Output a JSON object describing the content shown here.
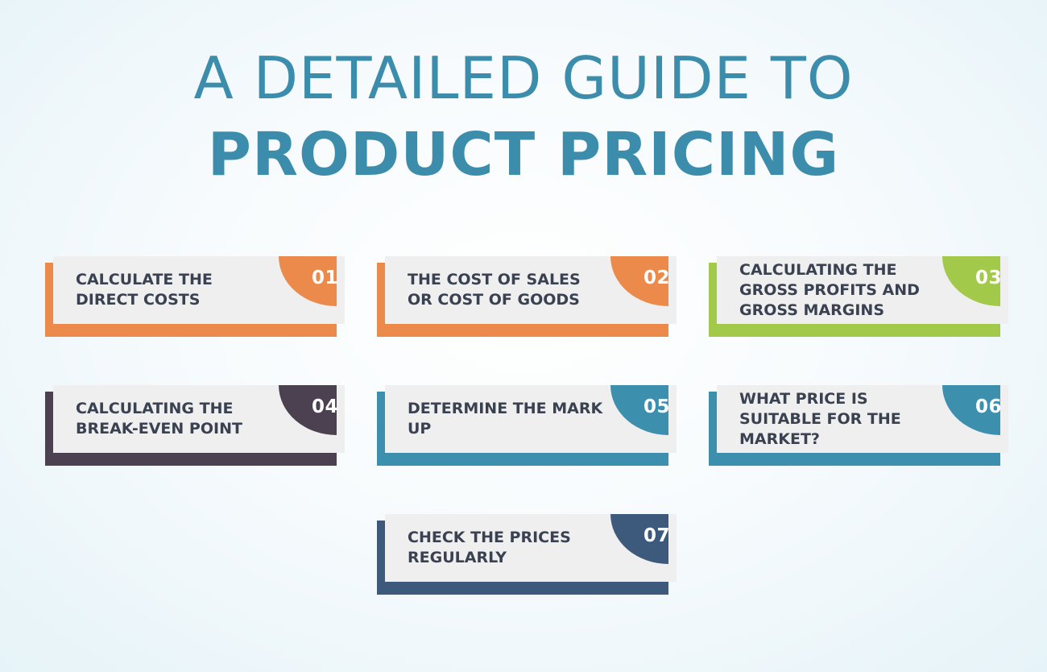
{
  "title": {
    "line1": "A DETAILED GUIDE TO",
    "line2": "PRODUCT PRICING"
  },
  "steps": [
    {
      "number": "01",
      "label": "CALCULATE THE DIRECT COSTS",
      "color": "#ec8a4c"
    },
    {
      "number": "02",
      "label": "THE COST OF SALES OR COST OF GOODS",
      "color": "#ec8a4c"
    },
    {
      "number": "03",
      "label": "CALCULATING THE GROSS PROFITS AND GROSS MARGINS",
      "color": "#a3c94a"
    },
    {
      "number": "04",
      "label": "CALCULATING THE BREAK-EVEN POINT",
      "color": "#4c4150"
    },
    {
      "number": "05",
      "label": "DETERMINE THE MARK UP",
      "color": "#3d8fae"
    },
    {
      "number": "06",
      "label": "WHAT PRICE IS SUITABLE FOR THE MARKET?",
      "color": "#3d8fae"
    },
    {
      "number": "07",
      "label": "CHECK THE PRICES REGULARLY",
      "color": "#3d5a7c"
    }
  ]
}
